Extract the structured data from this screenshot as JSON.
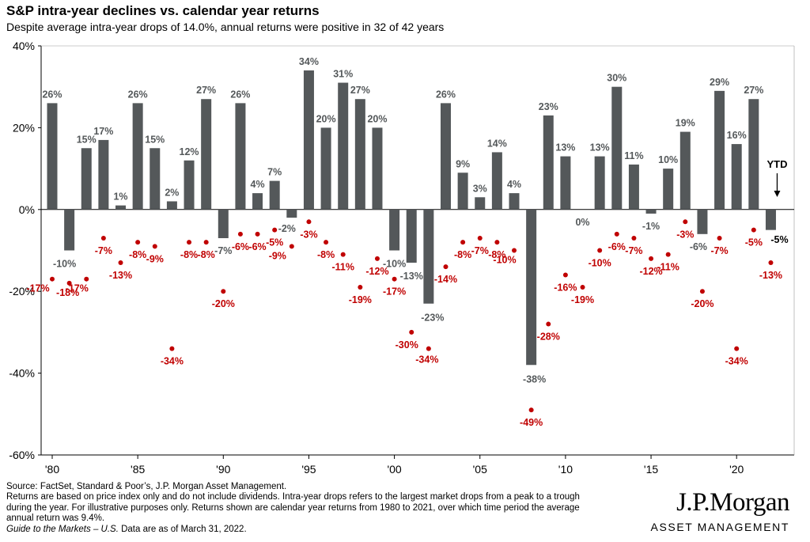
{
  "chart_data": {
    "type": "bar",
    "title": "S&P intra-year declines vs. calendar year returns",
    "subtitle": "Despite average intra-year drops of 14.0%, annual returns were positive in 32 of 42 years",
    "x": [
      1980,
      1981,
      1982,
      1983,
      1984,
      1985,
      1986,
      1987,
      1988,
      1989,
      1990,
      1991,
      1992,
      1993,
      1994,
      1995,
      1996,
      1997,
      1998,
      1999,
      2000,
      2001,
      2002,
      2003,
      2004,
      2005,
      2006,
      2007,
      2008,
      2009,
      2010,
      2011,
      2012,
      2013,
      2014,
      2015,
      2016,
      2017,
      2018,
      2019,
      2020,
      2021,
      2022
    ],
    "xticks": [
      1980,
      1985,
      1990,
      1995,
      2000,
      2005,
      2010,
      2015,
      2020
    ],
    "xtick_labels": [
      "'80",
      "'85",
      "'90",
      "'95",
      "'00",
      "'05",
      "'10",
      "'15",
      "'20"
    ],
    "ylim": [
      -60,
      40
    ],
    "yticks": [
      40,
      20,
      0,
      -20,
      -40,
      -60
    ],
    "ytick_labels": [
      "40%",
      "20%",
      "0%",
      "-20%",
      "-40%",
      "-60%"
    ],
    "grid": false,
    "series": [
      {
        "name": "Calendar year return",
        "kind": "bar",
        "color": "#54585a",
        "values": [
          26,
          -10,
          15,
          17,
          1,
          26,
          15,
          2,
          12,
          27,
          -7,
          26,
          4,
          7,
          -2,
          34,
          20,
          31,
          27,
          20,
          -10,
          -13,
          -23,
          26,
          9,
          3,
          14,
          4,
          -38,
          23,
          13,
          0,
          13,
          30,
          11,
          -1,
          10,
          19,
          -6,
          29,
          16,
          27,
          -5
        ],
        "labels": [
          "26%",
          "-10%",
          "15%",
          "17%",
          "1%",
          "26%",
          "15%",
          "2%",
          "12%",
          "27%",
          "-7%",
          "26%",
          "4%",
          "7%",
          "-2%",
          "34%",
          "20%",
          "31%",
          "27%",
          "20%",
          "-10%",
          "-13%",
          "-23%",
          "26%",
          "9%",
          "3%",
          "14%",
          "4%",
          "-38%",
          "23%",
          "13%",
          "0%",
          "13%",
          "30%",
          "11%",
          "-1%",
          "10%",
          "19%",
          "-6%",
          "29%",
          "16%",
          "27%",
          "-5%"
        ]
      },
      {
        "name": "Intra-year decline",
        "kind": "scatter",
        "color": "#c00000",
        "values": [
          -17,
          -18,
          -17,
          -7,
          -13,
          -8,
          -9,
          -34,
          -8,
          -8,
          -20,
          -6,
          -6,
          -5,
          -9,
          -3,
          -8,
          -11,
          -19,
          -12,
          -17,
          -30,
          -34,
          -14,
          -8,
          -7,
          -8,
          -10,
          -49,
          -28,
          -16,
          -19,
          -10,
          -6,
          -7,
          -12,
          -11,
          -3,
          -20,
          -7,
          -34,
          -5,
          -13
        ],
        "labels": [
          "-17%",
          "-18%",
          "-17%",
          "-7%",
          "-13%",
          "-8%",
          "-9%",
          "-34%",
          "-8%",
          "-8%",
          "-20%",
          "-6%",
          "-6%",
          "-5%",
          "-9%",
          "-3%",
          "-8%",
          "-11%",
          "-19%",
          "-12%",
          "-17%",
          "-30%",
          "-34%",
          "-14%",
          "-8%",
          "-7%",
          "-8%",
          "-10%",
          "-49%",
          "-28%",
          "-16%",
          "-19%",
          "-10%",
          "-6%",
          "-7%",
          "-12%",
          "-11%",
          "-3%",
          "-20%",
          "-7%",
          "-34%",
          "-5%",
          "-13%"
        ]
      }
    ],
    "annotations": [
      {
        "text": "YTD",
        "year": 2022
      }
    ]
  },
  "footnotes": {
    "source": "Source: FactSet, Standard & Poor’s, J.P. Morgan Asset Management.",
    "line2": "Returns are based on price index only and do not include dividends. Intra-year drops refers to the largest market drops from a peak to a trough",
    "line3": "during the year. For illustrative purposes only. Returns shown are calendar year returns from 1980 to 2021, over which time period the average",
    "line4": "annual return was 9.4%.",
    "guide_italic": "Guide to the Markets – U.S.",
    "guide_rest": " Data are as of March 31, 2022."
  },
  "logo": {
    "name": "J.P.Morgan",
    "sub": "ASSET MANAGEMENT"
  }
}
